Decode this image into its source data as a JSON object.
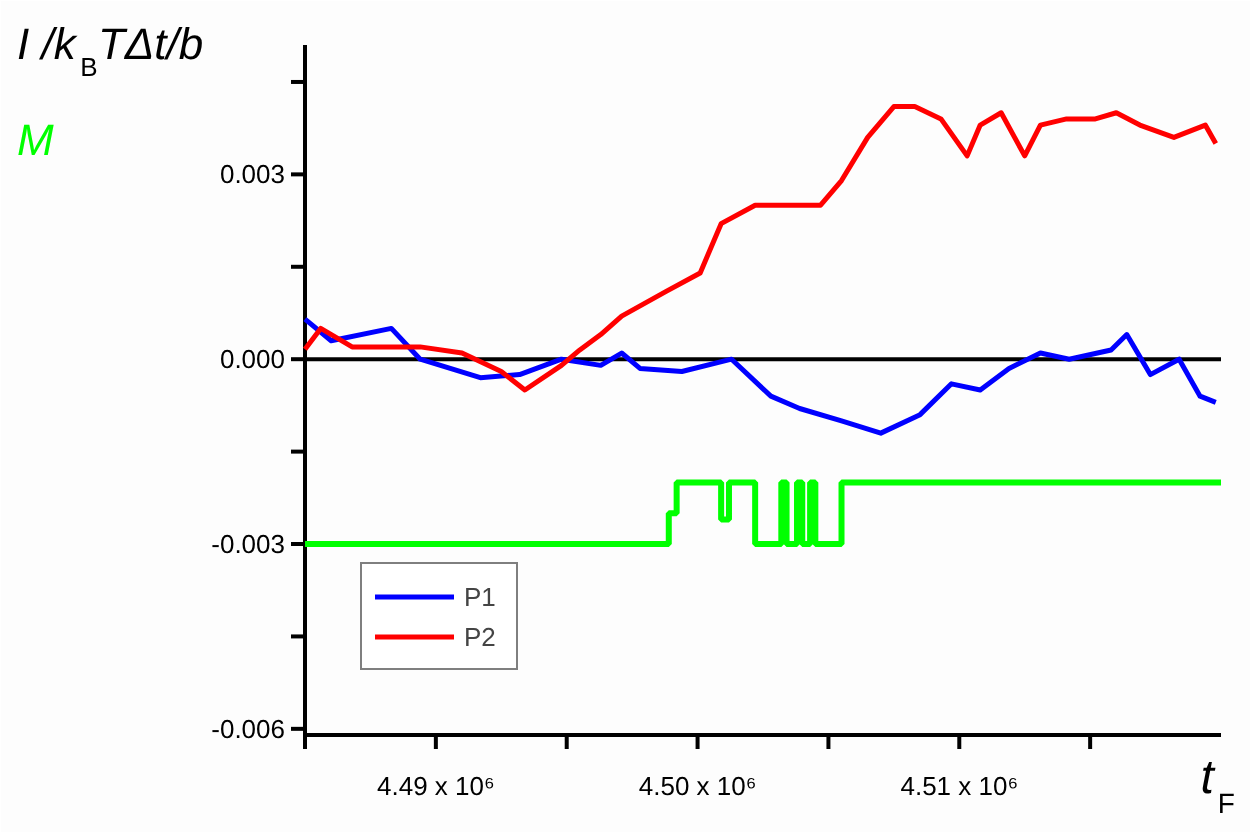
{
  "chart_data": {
    "type": "line",
    "ylabel": "I /k$_{B}$TΔt/b",
    "xlabel": "t$_{F}$",
    "xlim": [
      4485000,
      4520000
    ],
    "xticks": [
      {
        "value": 4485000,
        "label": null
      },
      {
        "value": 4490000,
        "label": "4.49 x 10⁶"
      },
      {
        "value": 4495000,
        "label": null
      },
      {
        "value": 4500000,
        "label": "4.50 x 10⁶"
      },
      {
        "value": 4505000,
        "label": null
      },
      {
        "value": 4510000,
        "label": "4.51 x 10⁶"
      },
      {
        "value": 4515000,
        "label": null
      }
    ],
    "ylim": [
      -0.0061,
      0.0051
    ],
    "yticks": [
      {
        "value": -0.006,
        "label": "-0.006"
      },
      {
        "value": -0.0045,
        "label": null
      },
      {
        "value": -0.003,
        "label": "-0.003"
      },
      {
        "value": -0.0015,
        "label": null
      },
      {
        "value": 0,
        "label": "0.000"
      },
      {
        "value": 0.0015,
        "label": null
      },
      {
        "value": 0.003,
        "label": "0.003"
      },
      {
        "value": 0.0045,
        "label": null
      }
    ],
    "grid": false,
    "legend": "bottom left",
    "ref_lines": [
      {
        "axis": "y",
        "value": 0,
        "color": "#000000"
      }
    ],
    "series": [
      {
        "name": "P1",
        "color": "#0000ff",
        "x": [
          4485000,
          4486000,
          4488300,
          4489400,
          4491700,
          4493200,
          4494800,
          4496300,
          4497100,
          4497800,
          4499400,
          4501300,
          4502800,
          4503900,
          4505500,
          4507000,
          4508500,
          4509700,
          4510800,
          4511900,
          4513100,
          4514200,
          4515800,
          4516400,
          4517300,
          4518400,
          4519200,
          4519800
        ],
        "values": [
          0.00065,
          0.0003,
          0.0005,
          0,
          -0.0003,
          -0.00025,
          0,
          -0.0001,
          0.0001,
          -0.00015,
          -0.0002,
          0,
          -0.0006,
          -0.0008,
          -0.001,
          -0.0012,
          -0.0009,
          -0.0004,
          -0.0005,
          -0.00015,
          0.0001,
          0,
          0.00015,
          0.0004,
          -0.00025,
          0,
          -0.0006,
          -0.0007
        ]
      },
      {
        "name": "P2",
        "color": "#ff0000",
        "x": [
          4485000,
          4485600,
          4486800,
          4488300,
          4489400,
          4491000,
          4492500,
          4493400,
          4494800,
          4495500,
          4496300,
          4497100,
          4498800,
          4500100,
          4500900,
          4502200,
          4503200,
          4504700,
          4505500,
          4506500,
          4507500,
          4508300,
          4509300,
          4510300,
          4510800,
          4511600,
          4512500,
          4513100,
          4514100,
          4515200,
          4516000,
          4516900,
          4518200,
          4519400,
          4519800
        ],
        "values": [
          0.00016,
          0.0005,
          0.0002,
          0.0002,
          0.0002,
          0.0001,
          -0.0002,
          -0.0005,
          -0.0001,
          0.00015,
          0.0004,
          0.0007,
          0.0011,
          0.0014,
          0.0022,
          0.0025,
          0.0025,
          0.0025,
          0.0029,
          0.0036,
          0.0041,
          0.0041,
          0.0039,
          0.0033,
          0.0038,
          0.004,
          0.0033,
          0.0038,
          0.0039,
          0.0039,
          0.004,
          0.0038,
          0.0036,
          0.0038,
          0.0035
        ]
      },
      {
        "name": "M",
        "type": "step",
        "color": "#00ff00",
        "x": [
          4485000,
          4498900,
          4499200,
          4500900,
          4501200,
          4502200,
          4503200,
          4503400,
          4503800,
          4504000,
          4504300,
          4504500,
          4505500,
          4520000
        ],
        "values": [
          -0.003,
          -0.0025,
          -0.002,
          -0.0026,
          -0.002,
          -0.003,
          -0.002,
          -0.003,
          -0.002,
          -0.003,
          -0.002,
          -0.003,
          -0.002,
          -0.002
        ]
      }
    ]
  }
}
